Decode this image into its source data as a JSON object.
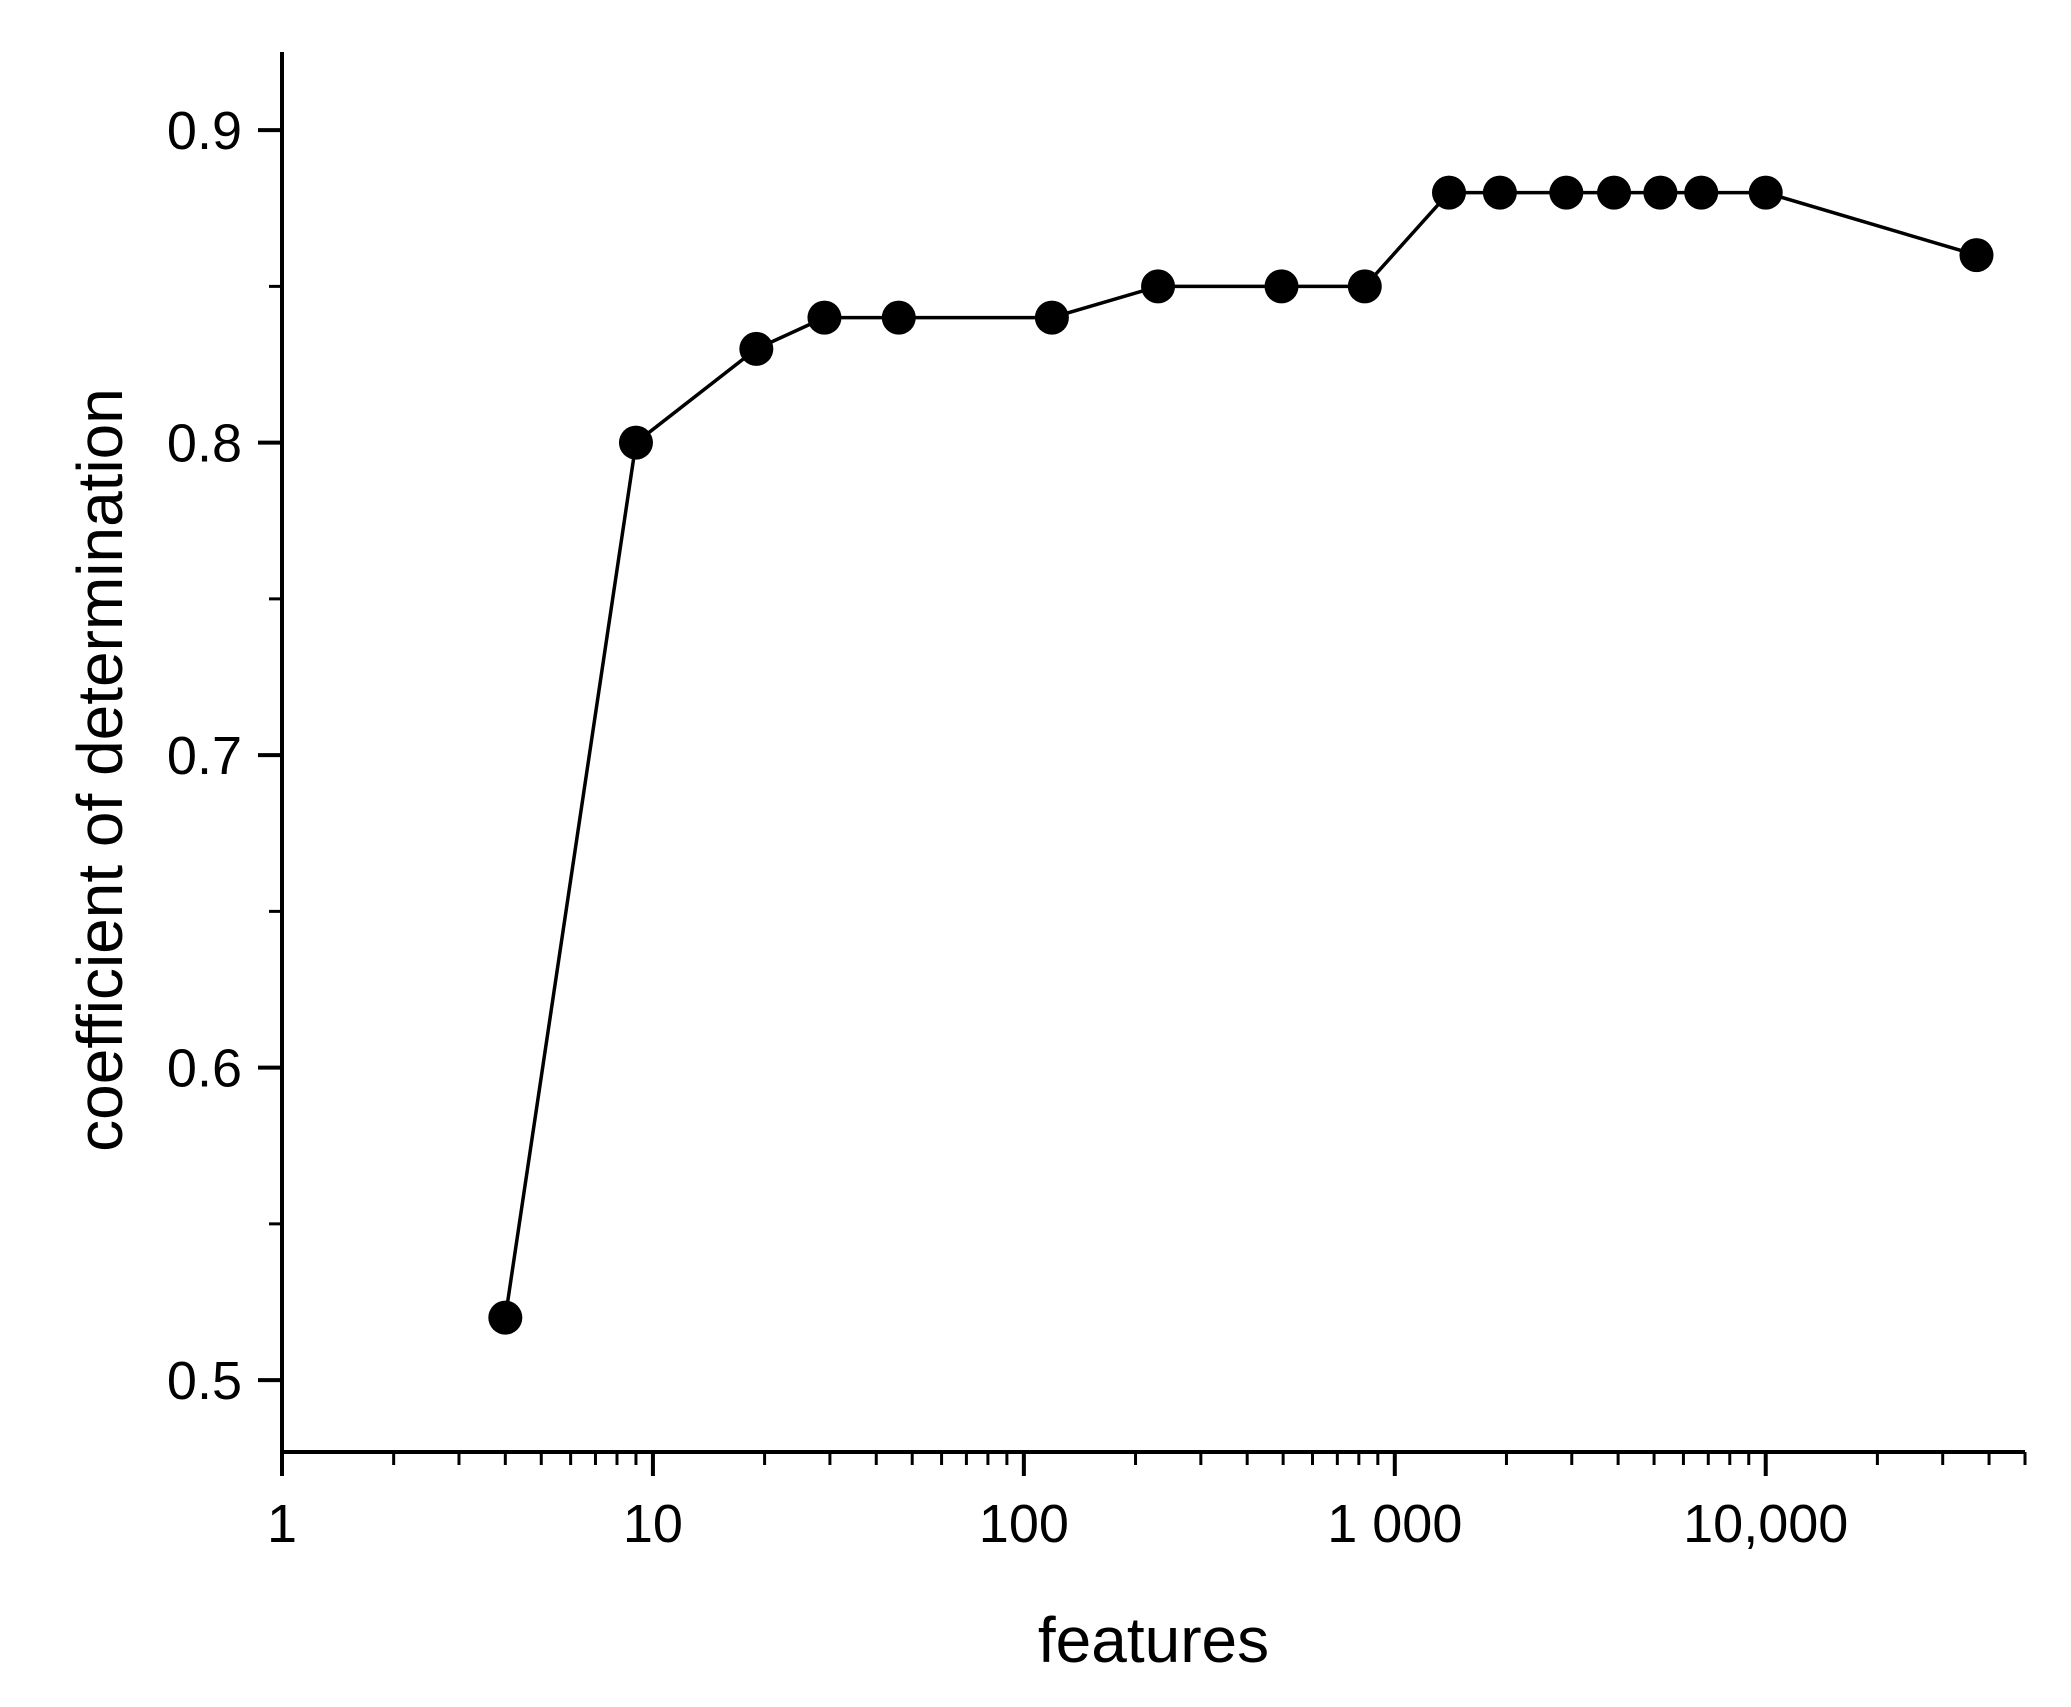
{
  "chart_data": {
    "type": "line",
    "title": "",
    "xlabel": "features",
    "ylabel": "coefficient of determination",
    "x_scale": "log10",
    "xlim": [
      1,
      50000
    ],
    "ylim": [
      0.477,
      0.925
    ],
    "x_ticks": [
      {
        "value": 1,
        "label": "1"
      },
      {
        "value": 10,
        "label": "10"
      },
      {
        "value": 100,
        "label": "100"
      },
      {
        "value": 1000,
        "label": "1 000"
      },
      {
        "value": 10000,
        "label": "10,000"
      }
    ],
    "y_ticks": [
      {
        "value": 0.5,
        "label": "0.5"
      },
      {
        "value": 0.6,
        "label": "0.6"
      },
      {
        "value": 0.7,
        "label": "0.7"
      },
      {
        "value": 0.8,
        "label": "0.8"
      },
      {
        "value": 0.9,
        "label": "0.9"
      }
    ],
    "y_minor_ticks": [
      0.55,
      0.65,
      0.75,
      0.85
    ],
    "grid": false,
    "legend": "none",
    "marker": "filled-circle",
    "series_color": "#000000",
    "series": [
      {
        "points": [
          {
            "x": 4,
            "y": 0.52
          },
          {
            "x": 9,
            "y": 0.8
          },
          {
            "x": 19,
            "y": 0.83
          },
          {
            "x": 29,
            "y": 0.84
          },
          {
            "x": 46,
            "y": 0.84
          },
          {
            "x": 119,
            "y": 0.84
          },
          {
            "x": 230,
            "y": 0.85
          },
          {
            "x": 495,
            "y": 0.85
          },
          {
            "x": 830,
            "y": 0.85
          },
          {
            "x": 1400,
            "y": 0.88
          },
          {
            "x": 1920,
            "y": 0.88
          },
          {
            "x": 2900,
            "y": 0.88
          },
          {
            "x": 3900,
            "y": 0.88
          },
          {
            "x": 5200,
            "y": 0.88
          },
          {
            "x": 6700,
            "y": 0.88
          },
          {
            "x": 10000,
            "y": 0.88
          },
          {
            "x": 37000,
            "y": 0.86
          }
        ]
      }
    ]
  }
}
